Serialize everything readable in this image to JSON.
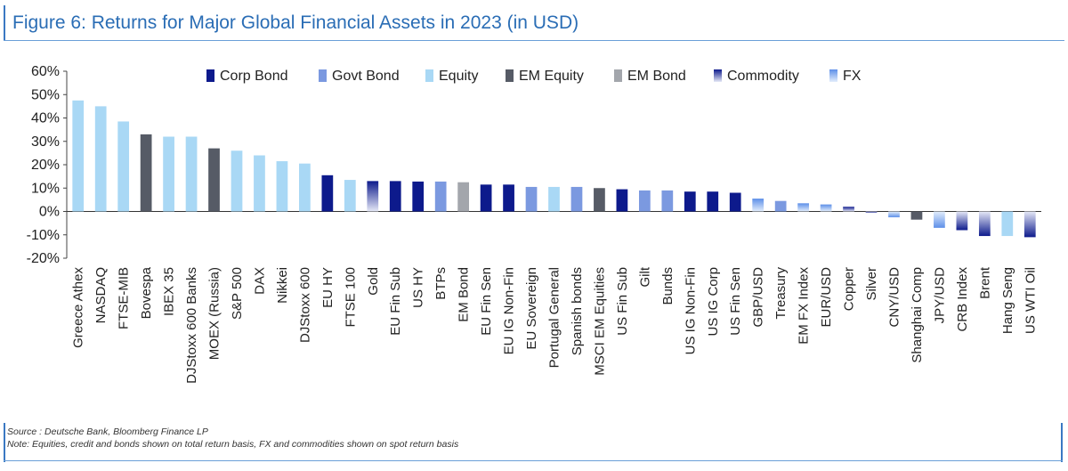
{
  "header": {
    "title": "Figure 6: Returns for Major Global Financial Assets in 2023 (in USD)"
  },
  "footer": {
    "source": "Source : Deutsche Bank, Bloomberg Finance LP",
    "note": "Note: Equities, credit and bonds shown on total return basis, FX and commodities shown on spot return basis"
  },
  "chart_data": {
    "type": "bar",
    "title": "Figure 6: Returns for Major Global Financial Assets in 2023 (in USD)",
    "xlabel": "",
    "ylabel": "",
    "ylim": [
      -20,
      60
    ],
    "yticks": [
      60,
      50,
      40,
      30,
      20,
      10,
      0,
      -10,
      -20
    ],
    "ytick_labels": [
      "60%",
      "50%",
      "40%",
      "30%",
      "20%",
      "10%",
      "0%",
      "-10%",
      "-20%"
    ],
    "grid": false,
    "legend_position": "top",
    "legend": [
      {
        "name": "Corp Bond",
        "color": "#0d1a8c",
        "style": "solid"
      },
      {
        "name": "Govt Bond",
        "color": "#7b99e0",
        "style": "solid"
      },
      {
        "name": "Equity",
        "color": "#a9d8f5",
        "style": "solid"
      },
      {
        "name": "EM Equity",
        "color": "#565b66",
        "style": "solid"
      },
      {
        "name": "EM Bond",
        "color": "#a3a6ac",
        "style": "solid"
      },
      {
        "name": "Commodity",
        "color": "#16208f",
        "style": "gradient"
      },
      {
        "name": "FX",
        "color": "#7aaaf0",
        "style": "gradient"
      }
    ],
    "categories": [
      "Greece Athex",
      "NASDAQ",
      "FTSE-MIB",
      "Bovespa",
      "IBEX 35",
      "DJStoxx 600 Banks",
      "MOEX (Russia)",
      "S&P 500",
      "DAX",
      "Nikkei",
      "DJStoxx 600",
      "EU HY",
      "FTSE 100",
      "Gold",
      "EU Fin Sub",
      "US HY",
      "BTPs",
      "EM Bond",
      "EU Fin Sen",
      "EU IG Non-Fin",
      "EU Sovereign",
      "Portugal General",
      "Spanish bonds",
      "MSCI EM Equities",
      "US Fin Sub",
      "Gilt",
      "Bunds",
      "US IG Non-Fin",
      "US IG Corp",
      "US Fin Sen",
      "GBP/USD",
      "Treasury",
      "EM FX Index",
      "EUR/USD",
      "Copper",
      "Silver",
      "CNY/USD",
      "Shanghai Comp",
      "JPY/USD",
      "CRB Index",
      "Brent",
      "Hang Seng",
      "US WTI Oil"
    ],
    "values": [
      47.5,
      45,
      38.5,
      33,
      32,
      32,
      27,
      26,
      24,
      21.5,
      20.5,
      15.5,
      13.5,
      13,
      13,
      12.8,
      12.8,
      12.5,
      11.5,
      11.5,
      10.5,
      10.5,
      10.5,
      10,
      9.5,
      9,
      9,
      8.5,
      8.5,
      8,
      5.5,
      4.5,
      3.5,
      3,
      2,
      -0.5,
      -2.5,
      -3.5,
      -7,
      -8,
      -10.5,
      -10.5,
      -11
    ],
    "asset_class": [
      "Equity",
      "Equity",
      "Equity",
      "EM Equity",
      "Equity",
      "Equity",
      "EM Equity",
      "Equity",
      "Equity",
      "Equity",
      "Equity",
      "Corp Bond",
      "Equity",
      "Commodity",
      "Corp Bond",
      "Corp Bond",
      "Govt Bond",
      "EM Bond",
      "Corp Bond",
      "Corp Bond",
      "Govt Bond",
      "Equity",
      "Govt Bond",
      "EM Equity",
      "Corp Bond",
      "Govt Bond",
      "Govt Bond",
      "Corp Bond",
      "Corp Bond",
      "Corp Bond",
      "FX",
      "Govt Bond",
      "FX",
      "FX",
      "Commodity",
      "Commodity",
      "FX",
      "EM Equity",
      "FX",
      "Commodity",
      "Commodity",
      "Equity",
      "Commodity"
    ]
  }
}
